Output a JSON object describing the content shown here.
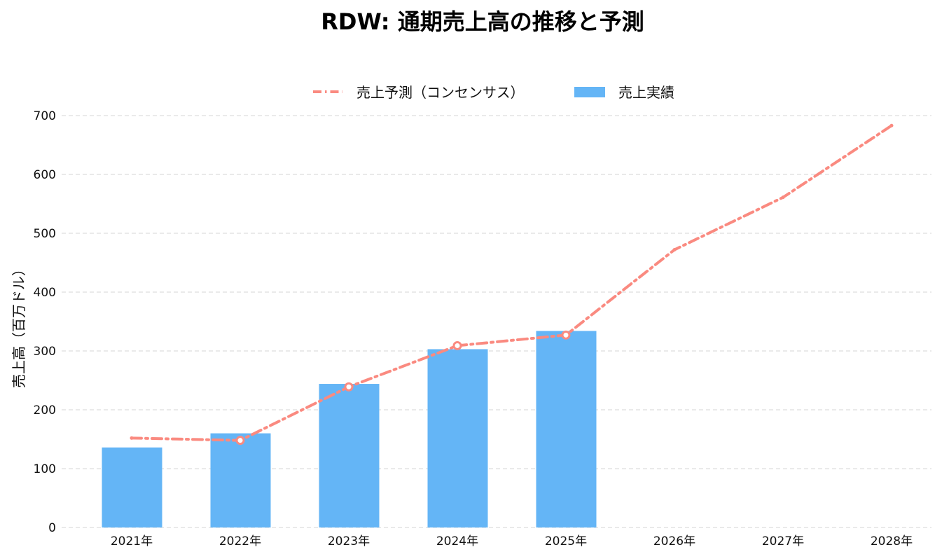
{
  "chart_data": {
    "type": "bar",
    "title": "RDW: 通期売上高の推移と予測",
    "ylabel": "売上高（百万ドル）",
    "xlabel": "",
    "ylim": [
      0,
      700
    ],
    "yticks": [
      0,
      100,
      200,
      300,
      400,
      500,
      600,
      700
    ],
    "grid": true,
    "legend_position": "top-center",
    "categories": [
      "2021年",
      "2022年",
      "2023年",
      "2024年",
      "2025年",
      "2026年",
      "2027年",
      "2028年"
    ],
    "series": [
      {
        "name": "売上実績",
        "type": "bar",
        "color": "#64b5f6",
        "values": [
          136,
          160,
          244,
          303,
          334,
          null,
          null,
          null
        ]
      },
      {
        "name": "売上予測（コンセンサス）",
        "type": "line",
        "style": "dash-dot",
        "color": "#fa8a80",
        "values": [
          152,
          148,
          239,
          309,
          327,
          472,
          561,
          683
        ]
      }
    ]
  }
}
